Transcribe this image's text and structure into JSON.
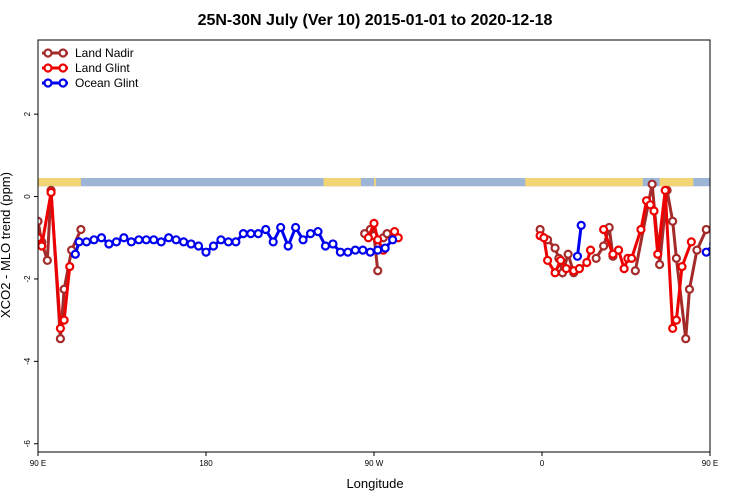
{
  "chart_data": {
    "type": "line",
    "title": "25N-30N July (Ver 10)   2015-01-01 to 2020-12-18",
    "xlabel": "Longitude",
    "ylabel": "XCO2 - MLO trend (ppm)",
    "xlim": [
      90,
      450
    ],
    "ylim": [
      -6.2,
      3.8
    ],
    "x_ticks": [
      {
        "value": 90,
        "label": "90 E"
      },
      {
        "value": 180,
        "label": "180"
      },
      {
        "value": 270,
        "label": "90 W"
      },
      {
        "value": 360,
        "label": "0"
      },
      {
        "value": 450,
        "label": "90 E"
      },
      {
        "value": 540,
        "label": "180"
      }
    ],
    "y_ticks": [
      {
        "value": -6,
        "label": "-6"
      },
      {
        "value": -4,
        "label": "-4"
      },
      {
        "value": -2,
        "label": "-2"
      },
      {
        "value": 0,
        "label": "0"
      },
      {
        "value": 2,
        "label": "2"
      }
    ],
    "legend_position": "top-left",
    "land_band": {
      "y_top": 0.45,
      "y_bottom": 0.25,
      "land_color": "#f2d474",
      "ocean_color": "#9db6d8",
      "land_ranges": [
        [
          90,
          113
        ],
        [
          243,
          263
        ],
        [
          270,
          271
        ],
        [
          351,
          414
        ],
        [
          423,
          441
        ],
        [
          450,
          473
        ],
        [
          603,
          623
        ]
      ]
    },
    "series": [
      {
        "name": "Land Nadir",
        "color": "#a52a2a",
        "segments": [
          [
            [
              90,
              -0.6
            ],
            [
              92,
              -1.1
            ],
            [
              95,
              -1.55
            ],
            [
              97,
              0.15
            ],
            [
              102,
              -3.45
            ],
            [
              104,
              -2.25
            ],
            [
              108,
              -1.3
            ],
            [
              113,
              -0.8
            ]
          ],
          [
            [
              265,
              -0.9
            ],
            [
              268,
              -0.8
            ],
            [
              270,
              -0.95
            ],
            [
              272,
              -1.8
            ]
          ],
          [
            [
              275,
              -1.0
            ],
            [
              277,
              -0.9
            ],
            [
              280,
              -1.0
            ]
          ],
          [
            [
              359,
              -0.8
            ],
            [
              363,
              -1.05
            ],
            [
              367,
              -1.25
            ],
            [
              369,
              -1.5
            ],
            [
              371,
              -1.85
            ],
            [
              374,
              -1.4
            ],
            [
              377,
              -1.85
            ],
            [
              380,
              -1.75
            ]
          ],
          [
            [
              389,
              -1.5
            ],
            [
              393,
              -1.2
            ],
            [
              396,
              -0.75
            ],
            [
              398,
              -1.45
            ],
            [
              401,
              -1.3
            ]
          ],
          [
            [
              410,
              -1.8
            ],
            [
              419,
              0.3
            ],
            [
              423,
              -1.65
            ],
            [
              427,
              0.15
            ],
            [
              430,
              -0.6
            ],
            [
              432,
              -1.5
            ],
            [
              437,
              -3.45
            ],
            [
              439,
              -2.25
            ],
            [
              443,
              -1.3
            ],
            [
              448,
              -0.8
            ]
          ]
        ]
      },
      {
        "name": "Land Glint",
        "color": "#ee0000",
        "segments": [
          [
            [
              90,
              -1.0
            ],
            [
              92,
              -1.2
            ],
            [
              97,
              0.1
            ],
            [
              102,
              -3.2
            ],
            [
              104,
              -3.0
            ],
            [
              107,
              -1.7
            ]
          ],
          [
            [
              267,
              -1.0
            ],
            [
              270,
              -0.65
            ],
            [
              272,
              -1.05
            ],
            [
              275,
              -1.3
            ]
          ],
          [
            [
              281,
              -0.85
            ],
            [
              283,
              -1.0
            ]
          ],
          [
            [
              359,
              -0.95
            ],
            [
              361,
              -1.0
            ],
            [
              363,
              -1.55
            ],
            [
              367,
              -1.85
            ],
            [
              370,
              -1.55
            ],
            [
              373,
              -1.75
            ],
            [
              377,
              -1.8
            ],
            [
              380,
              -1.75
            ],
            [
              384,
              -1.6
            ],
            [
              386,
              -1.3
            ]
          ],
          [
            [
              393,
              -0.8
            ],
            [
              398,
              -1.4
            ],
            [
              401,
              -1.3
            ],
            [
              404,
              -1.75
            ],
            [
              406,
              -1.5
            ],
            [
              408,
              -1.5
            ],
            [
              413,
              -0.8
            ],
            [
              416,
              -0.1
            ],
            [
              418,
              -0.2
            ],
            [
              420,
              -0.35
            ],
            [
              422,
              -1.4
            ],
            [
              426,
              0.15
            ],
            [
              430,
              -3.2
            ],
            [
              432,
              -3.0
            ],
            [
              435,
              -1.7
            ],
            [
              440,
              -1.1
            ]
          ]
        ]
      },
      {
        "name": "Ocean Glint",
        "color": "#0000ee",
        "segments": [
          [
            [
              110,
              -1.4
            ],
            [
              112,
              -1.1
            ],
            [
              116,
              -1.1
            ],
            [
              120,
              -1.05
            ],
            [
              124,
              -1.0
            ],
            [
              128,
              -1.15
            ],
            [
              132,
              -1.1
            ],
            [
              136,
              -1.0
            ],
            [
              140,
              -1.1
            ],
            [
              144,
              -1.05
            ],
            [
              148,
              -1.05
            ],
            [
              152,
              -1.05
            ],
            [
              156,
              -1.1
            ],
            [
              160,
              -1.0
            ],
            [
              164,
              -1.05
            ],
            [
              168,
              -1.1
            ],
            [
              172,
              -1.15
            ],
            [
              176,
              -1.2
            ],
            [
              180,
              -1.35
            ],
            [
              184,
              -1.2
            ],
            [
              188,
              -1.05
            ],
            [
              192,
              -1.1
            ],
            [
              196,
              -1.1
            ],
            [
              200,
              -0.9
            ],
            [
              204,
              -0.9
            ],
            [
              208,
              -0.9
            ],
            [
              212,
              -0.8
            ],
            [
              216,
              -1.1
            ],
            [
              220,
              -0.75
            ],
            [
              224,
              -1.2
            ],
            [
              228,
              -0.75
            ],
            [
              232,
              -1.05
            ],
            [
              236,
              -0.9
            ],
            [
              240,
              -0.85
            ],
            [
              244,
              -1.2
            ],
            [
              248,
              -1.15
            ],
            [
              252,
              -1.35
            ],
            [
              256,
              -1.35
            ],
            [
              260,
              -1.3
            ],
            [
              264,
              -1.3
            ],
            [
              268,
              -1.35
            ],
            [
              272,
              -1.3
            ],
            [
              276,
              -1.25
            ],
            [
              280,
              -1.05
            ]
          ],
          [
            [
              379,
              -1.45
            ],
            [
              381,
              -0.7
            ]
          ],
          [
            [
              448,
              -1.35
            ],
            [
              452,
              -1.15
            ],
            [
              456,
              -1.1
            ],
            [
              460,
              -1.1
            ],
            [
              464,
              -1.05
            ],
            [
              468,
              -1.15
            ],
            [
              472,
              -1.1
            ],
            [
              476,
              -1.0
            ],
            [
              480,
              -1.1
            ],
            [
              484,
              -1.05
            ],
            [
              488,
              -1.05
            ],
            [
              492,
              -1.05
            ],
            [
              496,
              -1.1
            ]
          ]
        ]
      }
    ]
  }
}
